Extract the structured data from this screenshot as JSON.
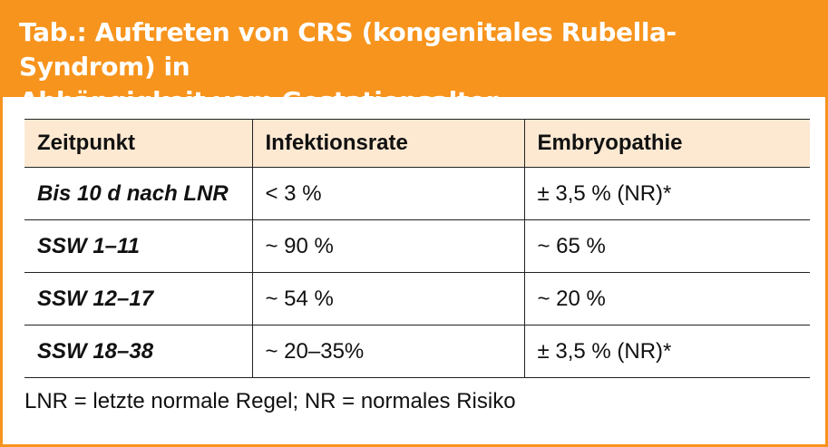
{
  "header": {
    "title_line1": "Tab.: Auftreten von CRS (kongenitales Rubella-Syndrom) in",
    "title_line2": "Abhängigkeit vom Gestationsalter"
  },
  "table": {
    "columns": [
      "Zeitpunkt",
      "Infektionsrate",
      "Embryopathie"
    ],
    "rows": [
      [
        "Bis 10 d nach LNR",
        "< 3 %",
        "± 3,5 % (NR)*"
      ],
      [
        "SSW 1–11",
        "~ 90 %",
        "~ 65 %"
      ],
      [
        "SSW 12–17",
        "~ 54 %",
        "~ 20 %"
      ],
      [
        "SSW 18–38",
        "~ 20–35%",
        "± 3,5 % (NR)*"
      ]
    ]
  },
  "footnote": "LNR = letzte normale Regel; NR = normales Risiko",
  "colors": {
    "accent": "#f7941d",
    "header_row_bg": "#fde9d2",
    "title_text": "#ffffff"
  }
}
